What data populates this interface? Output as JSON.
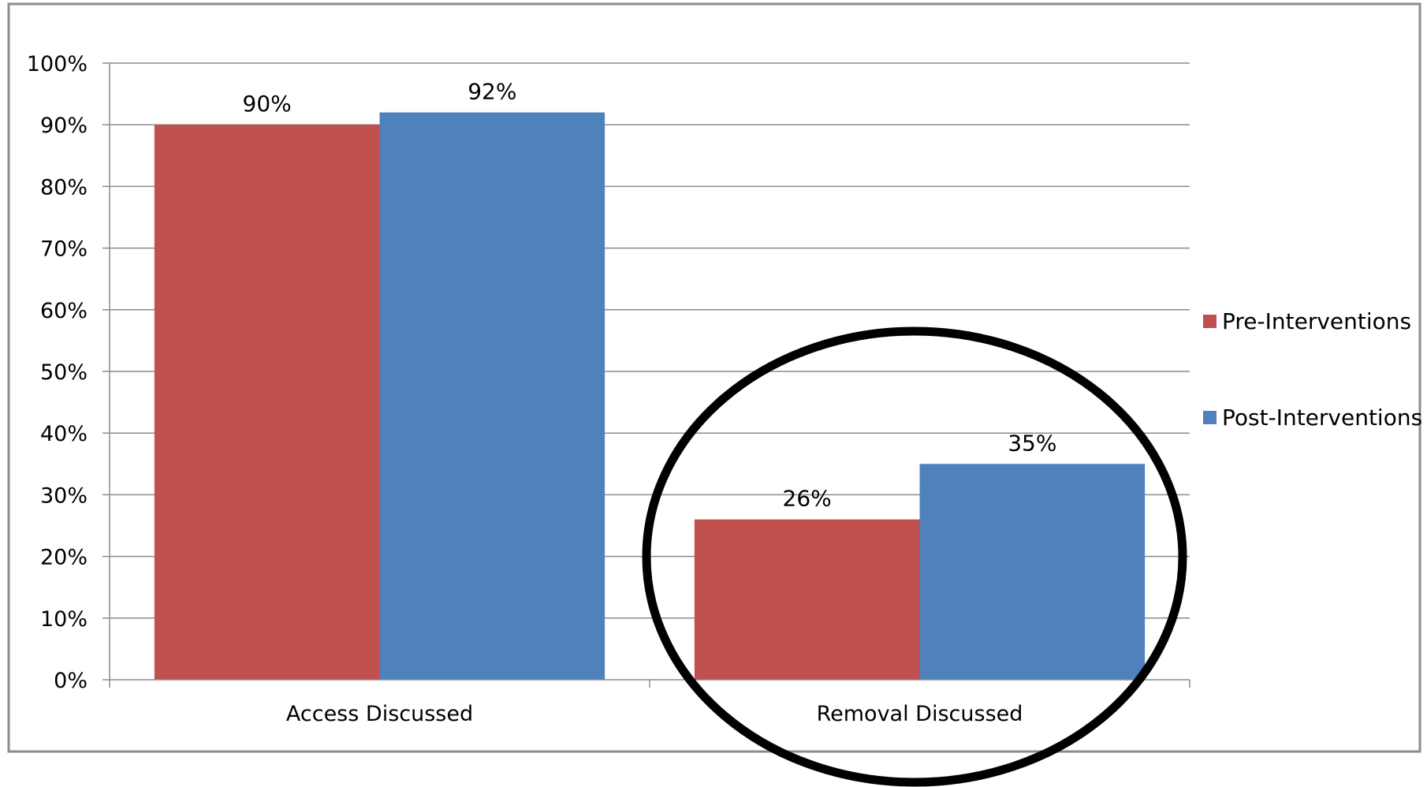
{
  "chart_data": {
    "type": "bar",
    "categories": [
      "Access Discussed",
      "Removal Discussed"
    ],
    "series": [
      {
        "name": "Pre-Interventions",
        "values": [
          90,
          26
        ],
        "labels": [
          "90%",
          "26%"
        ],
        "color": "#C0504D"
      },
      {
        "name": "Post-Interventions",
        "values": [
          92,
          35
        ],
        "labels": [
          "92%",
          "35%"
        ],
        "color": "#4F81BD"
      }
    ],
    "ylim": [
      0,
      100
    ],
    "yticks": [
      {
        "value": 0,
        "label": "0%"
      },
      {
        "value": 10,
        "label": "10%"
      },
      {
        "value": 20,
        "label": "20%"
      },
      {
        "value": 30,
        "label": "30%"
      },
      {
        "value": 40,
        "label": "40%"
      },
      {
        "value": 50,
        "label": "50%"
      },
      {
        "value": 60,
        "label": "60%"
      },
      {
        "value": 70,
        "label": "70%"
      },
      {
        "value": 80,
        "label": "80%"
      },
      {
        "value": 90,
        "label": "90%"
      },
      {
        "value": 100,
        "label": "100%"
      }
    ],
    "grid": true,
    "legend": "right",
    "title": "",
    "xlabel": "",
    "ylabel": "",
    "annotation": "black ellipse circling Removal Discussed"
  }
}
